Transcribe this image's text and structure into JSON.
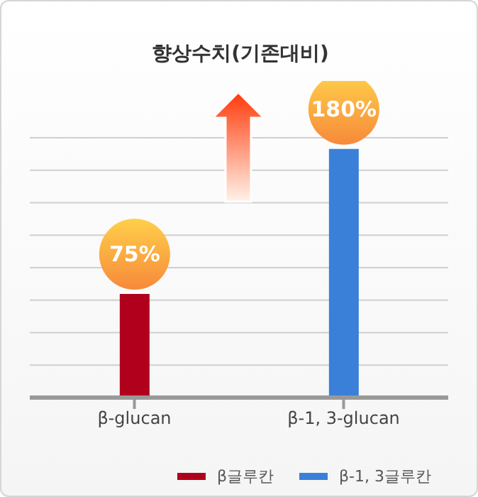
{
  "chart_data": {
    "type": "bar",
    "title": "향상수치(기존대비)",
    "categories": [
      "β-glucan",
      "β-1, 3-glucan"
    ],
    "tick_labels": "x",
    "stacked": true,
    "grid": "y",
    "legend": "bottom right",
    "series": [
      {
        "name": "β글루칸",
        "color": "#b0001c",
        "values": [
          75,
          null
        ],
        "value_labels": [
          "75%",
          null
        ]
      },
      {
        "name": "β-1, 3글루칸",
        "color": "#3a80d8",
        "values": [
          null,
          180
        ],
        "value_labels": [
          null,
          "180%"
        ]
      }
    ]
  }
}
